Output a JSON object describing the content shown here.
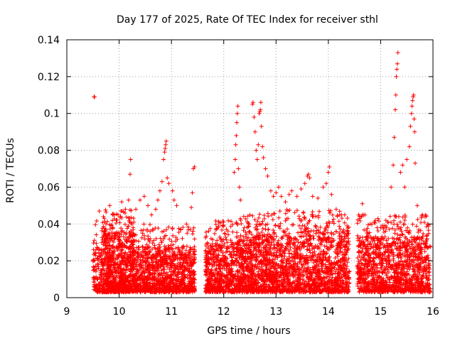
{
  "chart_data": {
    "type": "scatter",
    "title": "Day 177 of 2025, Rate Of TEC Index for receiver sthl",
    "xlabel": "GPS time / hours",
    "ylabel": "ROTI / TECUs",
    "xlim": [
      9,
      16
    ],
    "ylim": [
      0,
      0.14
    ],
    "xticks": [
      9,
      10,
      11,
      12,
      13,
      14,
      15,
      16
    ],
    "yticks": [
      0,
      0.02,
      0.04,
      0.06,
      0.08,
      0.1,
      0.12,
      0.14
    ],
    "xtick_labels": [
      "9",
      "10",
      "11",
      "12",
      "13",
      "14",
      "15",
      "16"
    ],
    "ytick_labels": [
      "0",
      "0.02",
      "0.04",
      "0.06",
      "0.08",
      "0.1",
      "0.12",
      "0.14"
    ],
    "grid": true,
    "marker": "+",
    "color": "#ff0000",
    "density_bands": [
      {
        "x0": 9.5,
        "x1": 9.68,
        "density": 120,
        "ymax": 0.03
      },
      {
        "x0": 9.68,
        "x1": 10.3,
        "density": 900,
        "ymax": 0.036
      },
      {
        "x0": 10.3,
        "x1": 11.45,
        "density": 1100,
        "ymax": 0.028
      },
      {
        "x0": 11.65,
        "x1": 12.3,
        "density": 650,
        "ymax": 0.03
      },
      {
        "x0": 12.3,
        "x1": 13.0,
        "density": 800,
        "ymax": 0.034
      },
      {
        "x0": 13.0,
        "x1": 14.4,
        "density": 1300,
        "ymax": 0.036
      },
      {
        "x0": 14.55,
        "x1": 15.95,
        "density": 1300,
        "ymax": 0.033
      }
    ],
    "points": [
      [
        9.52,
        0.109
      ],
      [
        9.53,
        0.109
      ],
      [
        9.62,
        0.047
      ],
      [
        9.7,
        0.044
      ],
      [
        9.75,
        0.04
      ],
      [
        9.82,
        0.05
      ],
      [
        9.88,
        0.045
      ],
      [
        10.05,
        0.052
      ],
      [
        10.12,
        0.048
      ],
      [
        10.18,
        0.053
      ],
      [
        10.21,
        0.067
      ],
      [
        10.22,
        0.075
      ],
      [
        10.32,
        0.048
      ],
      [
        10.4,
        0.053
      ],
      [
        10.48,
        0.055
      ],
      [
        10.55,
        0.05
      ],
      [
        10.62,
        0.045
      ],
      [
        10.7,
        0.048
      ],
      [
        10.74,
        0.053
      ],
      [
        10.78,
        0.058
      ],
      [
        10.82,
        0.063
      ],
      [
        10.85,
        0.075
      ],
      [
        10.87,
        0.079
      ],
      [
        10.88,
        0.081
      ],
      [
        10.89,
        0.083
      ],
      [
        10.9,
        0.085
      ],
      [
        10.92,
        0.065
      ],
      [
        10.95,
        0.062
      ],
      [
        11.02,
        0.058
      ],
      [
        11.05,
        0.053
      ],
      [
        11.1,
        0.05
      ],
      [
        11.3,
        0.035
      ],
      [
        11.38,
        0.049
      ],
      [
        11.4,
        0.057
      ],
      [
        11.42,
        0.07
      ],
      [
        11.44,
        0.071
      ],
      [
        12.2,
        0.068
      ],
      [
        12.22,
        0.075
      ],
      [
        12.23,
        0.083
      ],
      [
        12.24,
        0.088
      ],
      [
        12.25,
        0.095
      ],
      [
        12.26,
        0.1
      ],
      [
        12.27,
        0.104
      ],
      [
        12.28,
        0.07
      ],
      [
        12.3,
        0.06
      ],
      [
        12.32,
        0.053
      ],
      [
        12.55,
        0.105
      ],
      [
        12.56,
        0.106
      ],
      [
        12.58,
        0.098
      ],
      [
        12.6,
        0.09
      ],
      [
        12.62,
        0.08
      ],
      [
        12.64,
        0.075
      ],
      [
        12.66,
        0.083
      ],
      [
        12.68,
        0.1
      ],
      [
        12.69,
        0.101
      ],
      [
        12.7,
        0.102
      ],
      [
        12.71,
        0.106
      ],
      [
        12.72,
        0.093
      ],
      [
        12.74,
        0.082
      ],
      [
        12.76,
        0.076
      ],
      [
        12.8,
        0.07
      ],
      [
        12.84,
        0.066
      ],
      [
        12.9,
        0.058
      ],
      [
        12.95,
        0.055
      ],
      [
        13.0,
        0.057
      ],
      [
        13.05,
        0.06
      ],
      [
        13.1,
        0.055
      ],
      [
        13.18,
        0.052
      ],
      [
        13.25,
        0.056
      ],
      [
        13.3,
        0.058
      ],
      [
        13.4,
        0.055
      ],
      [
        13.48,
        0.059
      ],
      [
        13.55,
        0.062
      ],
      [
        13.6,
        0.066
      ],
      [
        13.62,
        0.067
      ],
      [
        13.64,
        0.065
      ],
      [
        13.7,
        0.055
      ],
      [
        13.8,
        0.054
      ],
      [
        13.9,
        0.06
      ],
      [
        13.96,
        0.062
      ],
      [
        14.0,
        0.068
      ],
      [
        14.02,
        0.071
      ],
      [
        14.06,
        0.056
      ],
      [
        14.15,
        0.048
      ],
      [
        14.25,
        0.045
      ],
      [
        14.65,
        0.051
      ],
      [
        14.7,
        0.045
      ],
      [
        14.8,
        0.04
      ],
      [
        14.9,
        0.042
      ],
      [
        15.0,
        0.038
      ],
      [
        15.1,
        0.042
      ],
      [
        15.2,
        0.06
      ],
      [
        15.24,
        0.072
      ],
      [
        15.26,
        0.087
      ],
      [
        15.28,
        0.102
      ],
      [
        15.29,
        0.11
      ],
      [
        15.3,
        0.12
      ],
      [
        15.31,
        0.124
      ],
      [
        15.32,
        0.127
      ],
      [
        15.33,
        0.133
      ],
      [
        15.38,
        0.068
      ],
      [
        15.42,
        0.072
      ],
      [
        15.46,
        0.06
      ],
      [
        15.5,
        0.075
      ],
      [
        15.55,
        0.082
      ],
      [
        15.57,
        0.093
      ],
      [
        15.59,
        0.1
      ],
      [
        15.6,
        0.104
      ],
      [
        15.61,
        0.107
      ],
      [
        15.62,
        0.109
      ],
      [
        15.63,
        0.11
      ],
      [
        15.64,
        0.097
      ],
      [
        15.65,
        0.09
      ],
      [
        15.66,
        0.073
      ],
      [
        15.7,
        0.05
      ],
      [
        15.8,
        0.045
      ],
      [
        15.9,
        0.04
      ]
    ]
  }
}
